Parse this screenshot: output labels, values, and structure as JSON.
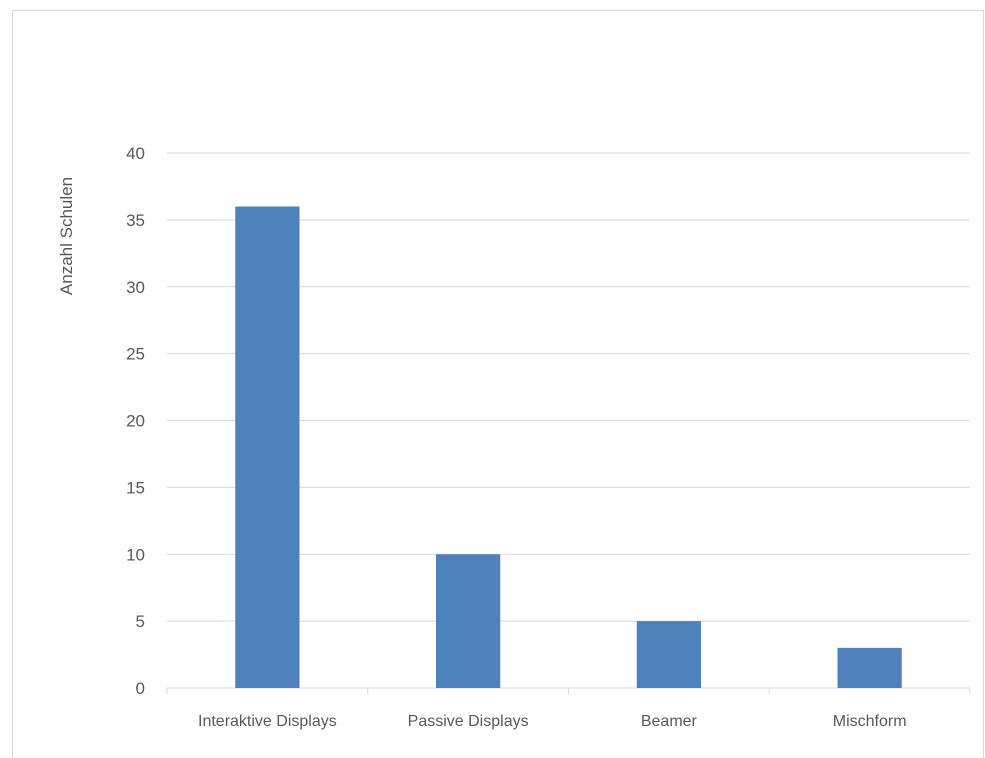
{
  "chart_data": {
    "type": "bar",
    "title": "",
    "xlabel": "",
    "ylabel": "Anzahl Schulen",
    "categories": [
      "Interaktive Displays",
      "Passive Displays",
      "Beamer",
      "Mischform"
    ],
    "values": [
      36,
      10,
      5,
      3
    ],
    "ylim": [
      0,
      40
    ],
    "yticks": [
      "0",
      "5",
      "10",
      "15",
      "20",
      "25",
      "30",
      "35",
      "40"
    ],
    "grid": true,
    "legend": "none",
    "colors": {
      "bar": "#4f81bd",
      "grid": "#d9d9d9",
      "text": "#595959"
    }
  }
}
